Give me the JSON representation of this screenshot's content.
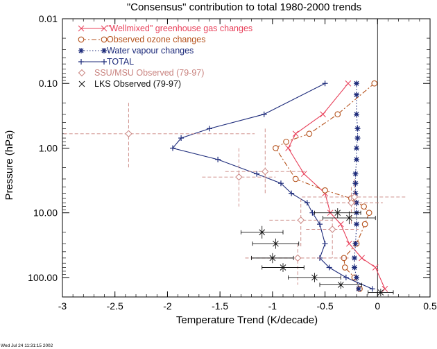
{
  "chart_data": {
    "type": "line",
    "title": "\"Consensus\" contribution to total 1980-2000 trends",
    "xlabel": "Temperature Trend (K/decade)",
    "ylabel": "Pressure (hPa)",
    "xlim": [
      -3,
      0.5
    ],
    "ylim": [
      0.01,
      200
    ],
    "y_scale": "log",
    "y_reversed": true,
    "x_ticks": [
      -3,
      -2.5,
      -2,
      -1.5,
      -1,
      -0.5,
      0,
      0.5
    ],
    "x_tick_labels": [
      "-3",
      "-2.5",
      "-2",
      "-1.5",
      "-1",
      "-0.5",
      "0",
      "0.5"
    ],
    "y_ticks": [
      0.01,
      0.1,
      1,
      10,
      100
    ],
    "y_tick_labels": [
      "0.01",
      "0.10",
      "1.00",
      "10.00",
      "100.00"
    ],
    "zero_line": 0,
    "grid": false,
    "legend_position": "top-left",
    "series": [
      {
        "name": "\"Wellmixed\" greenhouse gas changes",
        "color": "#e8405a",
        "marker": "x",
        "line": "solid",
        "points": [
          {
            "x": -0.28,
            "y": 0.1
          },
          {
            "x": -0.52,
            "y": 0.3
          },
          {
            "x": -0.78,
            "y": 0.6
          },
          {
            "x": -0.85,
            "y": 1.0
          },
          {
            "x": -0.7,
            "y": 2.5
          },
          {
            "x": -0.5,
            "y": 5.0
          },
          {
            "x": -0.45,
            "y": 10.0
          },
          {
            "x": -0.35,
            "y": 15.0
          },
          {
            "x": -0.27,
            "y": 30.0
          },
          {
            "x": -0.15,
            "y": 50.0
          },
          {
            "x": -0.02,
            "y": 70.0
          },
          {
            "x": 0.07,
            "y": 150.0
          }
        ]
      },
      {
        "name": "Observed ozone changes",
        "color": "#b5521c",
        "marker": "o",
        "line": "dashdot",
        "points": [
          {
            "x": -0.03,
            "y": 0.1
          },
          {
            "x": -0.38,
            "y": 0.3
          },
          {
            "x": -0.65,
            "y": 0.6
          },
          {
            "x": -0.87,
            "y": 0.8
          },
          {
            "x": -0.97,
            "y": 1.0
          },
          {
            "x": -0.78,
            "y": 3.0
          },
          {
            "x": -0.5,
            "y": 4.5
          },
          {
            "x": -0.25,
            "y": 6.0
          },
          {
            "x": -0.13,
            "y": 8.0
          },
          {
            "x": -0.08,
            "y": 10.0
          },
          {
            "x": -0.12,
            "y": 15.0
          },
          {
            "x": -0.2,
            "y": 30.0
          },
          {
            "x": -0.32,
            "y": 50.0
          },
          {
            "x": -0.31,
            "y": 70.0
          },
          {
            "x": -0.22,
            "y": 100.0
          },
          {
            "x": -0.17,
            "y": 150.0
          }
        ]
      },
      {
        "name": "Water vapour changes",
        "color": "#1c2a7a",
        "marker": "*",
        "line": "dotted",
        "points": [
          {
            "x": -0.2,
            "y": 0.1
          },
          {
            "x": -0.2,
            "y": 0.15
          },
          {
            "x": -0.2,
            "y": 0.3
          },
          {
            "x": -0.19,
            "y": 0.5
          },
          {
            "x": -0.19,
            "y": 0.7
          },
          {
            "x": -0.2,
            "y": 1.0
          },
          {
            "x": -0.2,
            "y": 1.5
          },
          {
            "x": -0.21,
            "y": 2.5
          },
          {
            "x": -0.21,
            "y": 3.5
          },
          {
            "x": -0.21,
            "y": 5.0
          },
          {
            "x": -0.2,
            "y": 7.0
          },
          {
            "x": -0.2,
            "y": 10.0
          },
          {
            "x": -0.2,
            "y": 15.0
          },
          {
            "x": -0.21,
            "y": 30.0
          },
          {
            "x": -0.22,
            "y": 50.0
          },
          {
            "x": -0.22,
            "y": 70.0
          },
          {
            "x": -0.2,
            "y": 100.0
          },
          {
            "x": -0.18,
            "y": 150.0
          }
        ]
      },
      {
        "name": "TOTAL",
        "color": "#1c2a7a",
        "marker": "+",
        "line": "solid",
        "points": [
          {
            "x": -0.5,
            "y": 0.1
          },
          {
            "x": -1.08,
            "y": 0.3
          },
          {
            "x": -1.6,
            "y": 0.5
          },
          {
            "x": -1.87,
            "y": 0.7
          },
          {
            "x": -1.95,
            "y": 1.0
          },
          {
            "x": -1.52,
            "y": 1.5
          },
          {
            "x": -1.15,
            "y": 2.5
          },
          {
            "x": -0.92,
            "y": 3.5
          },
          {
            "x": -0.82,
            "y": 5.0
          },
          {
            "x": -0.67,
            "y": 7.0
          },
          {
            "x": -0.62,
            "y": 10.0
          },
          {
            "x": -0.55,
            "y": 15.0
          },
          {
            "x": -0.5,
            "y": 30.0
          },
          {
            "x": -0.55,
            "y": 50.0
          },
          {
            "x": -0.46,
            "y": 70.0
          },
          {
            "x": -0.3,
            "y": 100.0
          },
          {
            "x": -0.05,
            "y": 150.0
          }
        ]
      },
      {
        "name": "SSU/MSU Observed (79-97)",
        "color": "#c9837f",
        "marker": "diamond",
        "line": "none",
        "points": [
          {
            "x": -2.37,
            "y": 0.6,
            "xerr": 1.2,
            "ylo": 0.2,
            "yhi": 2.0
          },
          {
            "x": -1.07,
            "y": 2.3,
            "xerr": 0.38,
            "ylo": 0.5,
            "yhi": 5.0
          },
          {
            "x": -1.32,
            "y": 2.8,
            "xerr": 0.35,
            "ylo": 1.0,
            "yhi": 8.0
          },
          {
            "x": -0.22,
            "y": 5.7,
            "xerr": 0.5,
            "ylo": 3.0,
            "yhi": 10.0
          },
          {
            "x": -0.25,
            "y": 7.0,
            "xerr": 0.3,
            "ylo": 4.0,
            "yhi": 15.0
          },
          {
            "x": -0.73,
            "y": 13.0,
            "xerr": 0.3,
            "ylo": 6.0,
            "yhi": 35.0
          },
          {
            "x": -0.43,
            "y": 18.0,
            "xerr": 0.25,
            "ylo": 12.0,
            "yhi": 50.0
          },
          {
            "x": -0.76,
            "y": 50.0,
            "xerr": 0.5,
            "ylo": 30.0,
            "yhi": 130.0
          }
        ]
      },
      {
        "name": "LKS Observed (79-97)",
        "color": "#111111",
        "marker": "x",
        "line": "none",
        "points": [
          {
            "x": -0.27,
            "y": 12.0,
            "xerr": 0.25,
            "ylo": 9.5,
            "yhi": 15.0
          },
          {
            "x": -0.38,
            "y": 10.0,
            "xerr": 0.22,
            "ylo": 8.5,
            "yhi": 12.0
          },
          {
            "x": -1.1,
            "y": 20.0,
            "xerr": 0.2,
            "ylo": 16.0,
            "yhi": 25.0
          },
          {
            "x": -0.97,
            "y": 30.0,
            "xerr": 0.22,
            "ylo": 25.0,
            "yhi": 36.0
          },
          {
            "x": -1.0,
            "y": 50.0,
            "xerr": 0.2,
            "ylo": 42.0,
            "yhi": 60.0
          },
          {
            "x": -0.9,
            "y": 70.0,
            "xerr": 0.2,
            "ylo": 60.0,
            "yhi": 82.0
          },
          {
            "x": -0.6,
            "y": 100.0,
            "xerr": 0.25,
            "ylo": 85.0,
            "yhi": 118.0
          },
          {
            "x": -0.35,
            "y": 130.0,
            "xerr": 0.2,
            "ylo": 115.0,
            "yhi": 150.0
          },
          {
            "x": 0.03,
            "y": 170.0,
            "xerr": 0.12,
            "ylo": 150.0,
            "yhi": 195.0
          }
        ]
      }
    ]
  },
  "footer": {
    "timestamp": "Wed Jul 24 11:31:15 2002"
  }
}
